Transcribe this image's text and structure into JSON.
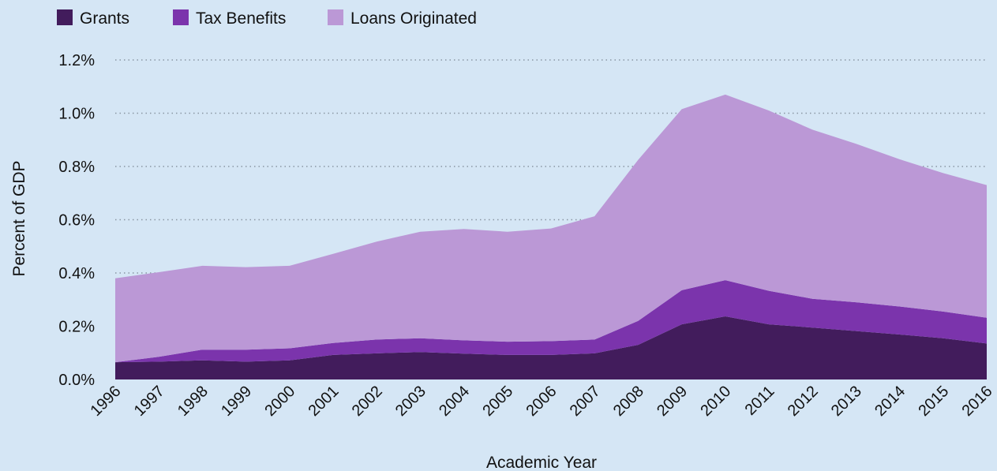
{
  "chart_data": {
    "type": "area",
    "stacked": true,
    "x": [
      "1996",
      "1997",
      "1998",
      "1999",
      "2000",
      "2001",
      "2002",
      "2003",
      "2004",
      "2005",
      "2006",
      "2007",
      "2008",
      "2009",
      "2010",
      "2011",
      "2012",
      "2013",
      "2014",
      "2015",
      "2016"
    ],
    "series": [
      {
        "name": "Grants",
        "color": "#421c5c",
        "values": [
          0.065,
          0.067,
          0.072,
          0.067,
          0.072,
          0.092,
          0.098,
          0.103,
          0.097,
          0.092,
          0.092,
          0.098,
          0.13,
          0.207,
          0.237,
          0.207,
          0.195,
          0.182,
          0.169,
          0.155,
          0.135
        ]
      },
      {
        "name": "Tax Benefits",
        "color": "#7b34ac",
        "values": [
          0.0,
          0.018,
          0.04,
          0.045,
          0.045,
          0.045,
          0.052,
          0.052,
          0.05,
          0.05,
          0.052,
          0.052,
          0.09,
          0.128,
          0.136,
          0.126,
          0.108,
          0.108,
          0.105,
          0.1,
          0.097
        ]
      },
      {
        "name": "Loans Originated",
        "color": "#bb98d6",
        "values": [
          0.315,
          0.318,
          0.315,
          0.31,
          0.31,
          0.335,
          0.368,
          0.4,
          0.418,
          0.413,
          0.423,
          0.463,
          0.605,
          0.68,
          0.697,
          0.677,
          0.635,
          0.595,
          0.553,
          0.52,
          0.498
        ]
      }
    ],
    "title": "",
    "xlabel": "Academic Year",
    "ylabel": "Percent of GDP",
    "ylim": [
      0,
      1.2
    ],
    "yticks": [
      "0.0%",
      "0.2%",
      "0.4%",
      "0.6%",
      "0.8%",
      "1.0%",
      "1.2%"
    ],
    "grid": true,
    "legend": "top-left"
  }
}
